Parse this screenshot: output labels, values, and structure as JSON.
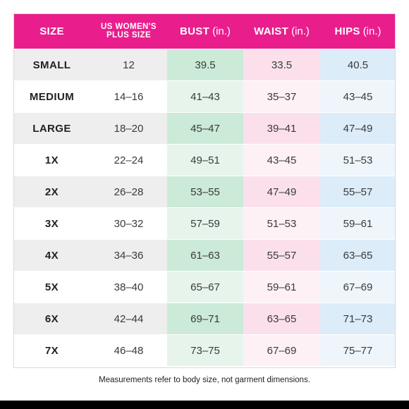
{
  "header": {
    "size": "SIZE",
    "us_line1": "US WOMEN'S",
    "us_line2": "PLUS SIZE",
    "bust": "BUST",
    "waist": "WAIST",
    "hips": "HIPS",
    "unit": "(in.)"
  },
  "rows": [
    {
      "size": "SMALL",
      "us": "12",
      "bust": "39.5",
      "waist": "33.5",
      "hips": "40.5"
    },
    {
      "size": "MEDIUM",
      "us": "14–16",
      "bust": "41–43",
      "waist": "35–37",
      "hips": "43–45"
    },
    {
      "size": "LARGE",
      "us": "18–20",
      "bust": "45–47",
      "waist": "39–41",
      "hips": "47–49"
    },
    {
      "size": "1X",
      "us": "22–24",
      "bust": "49–51",
      "waist": "43–45",
      "hips": "51–53"
    },
    {
      "size": "2X",
      "us": "26–28",
      "bust": "53–55",
      "waist": "47–49",
      "hips": "55–57"
    },
    {
      "size": "3X",
      "us": "30–32",
      "bust": "57–59",
      "waist": "51–53",
      "hips": "59–61"
    },
    {
      "size": "4X",
      "us": "34–36",
      "bust": "61–63",
      "waist": "55–57",
      "hips": "63–65"
    },
    {
      "size": "5X",
      "us": "38–40",
      "bust": "65–67",
      "waist": "59–61",
      "hips": "67–69"
    },
    {
      "size": "6X",
      "us": "42–44",
      "bust": "69–71",
      "waist": "63–65",
      "hips": "71–73"
    },
    {
      "size": "7X",
      "us": "46–48",
      "bust": "73–75",
      "waist": "67–69",
      "hips": "75–77"
    }
  ],
  "footnote": "Measurements refer to body size, not garment dimensions.",
  "colors": {
    "header": "#e91e8c",
    "bust_shade": "#cbead7",
    "waist_shade": "#fbe0ec",
    "hips_shade": "#dcecf8"
  }
}
